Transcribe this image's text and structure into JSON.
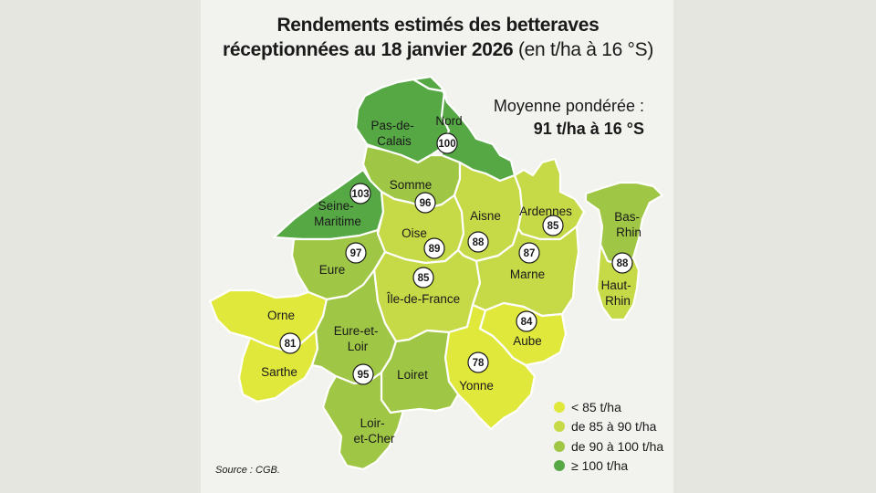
{
  "title": {
    "line1": "Rendements estimés des betteraves",
    "line2": "réceptionnées au 18 janvier 2026",
    "unit": "(en t/ha à 16 °S)"
  },
  "average": {
    "label": "Moyenne pondérée :",
    "value": "91 t/ha à 16 °S"
  },
  "colors": {
    "lt85": "#e1e83c",
    "85to90": "#c6d947",
    "90to100": "#9fc745",
    "ge100": "#56a845"
  },
  "departments": [
    {
      "id": "pas-de-calais",
      "name": "Pas-de-Calais",
      "value": null,
      "class": "ge100"
    },
    {
      "id": "nord",
      "name": "Nord",
      "value": 100,
      "class": "ge100"
    },
    {
      "id": "seine-maritime",
      "name": "Seine-Maritime",
      "value": 103,
      "class": "ge100"
    },
    {
      "id": "somme",
      "name": "Somme",
      "value": 96,
      "class": "90to100"
    },
    {
      "id": "oise",
      "name": "Oise",
      "value": 89,
      "class": "85to90"
    },
    {
      "id": "aisne",
      "name": "Aisne",
      "value": 88,
      "class": "85to90"
    },
    {
      "id": "ardennes",
      "name": "Ardennes",
      "value": 85,
      "class": "85to90"
    },
    {
      "id": "bas-rhin",
      "name": "Bas-Rhin",
      "value": null,
      "class": "90to100"
    },
    {
      "id": "haut-rhin",
      "name": "Haut-Rhin",
      "value": 88,
      "class": "85to90"
    },
    {
      "id": "eure",
      "name": "Eure",
      "value": 97,
      "class": "90to100"
    },
    {
      "id": "ile-de-france",
      "name": "Île-de-France",
      "value": 85,
      "class": "85to90"
    },
    {
      "id": "marne",
      "name": "Marne",
      "value": 87,
      "class": "85to90"
    },
    {
      "id": "aube",
      "name": "Aube",
      "value": 84,
      "class": "lt85"
    },
    {
      "id": "orne",
      "name": "Orne",
      "value": 81,
      "class": "lt85"
    },
    {
      "id": "sarthe",
      "name": "Sarthe",
      "value": null,
      "class": "lt85"
    },
    {
      "id": "eure-et-loir",
      "name": "Eure-et-Loir",
      "value": 95,
      "class": "90to100"
    },
    {
      "id": "loiret",
      "name": "Loiret",
      "value": null,
      "class": "90to100"
    },
    {
      "id": "yonne",
      "name": "Yonne",
      "value": 78,
      "class": "lt85"
    },
    {
      "id": "loir-et-cher",
      "name": "Loir-et-Cher",
      "value": null,
      "class": "90to100"
    }
  ],
  "legend": [
    {
      "label": "< 85 t/ha",
      "color": "#e1e83c"
    },
    {
      "label": "de 85 à 90 t/ha",
      "color": "#c6d947"
    },
    {
      "label": "de 90 à 100 t/ha",
      "color": "#9fc745"
    },
    {
      "label": "≥ 100 t/ha",
      "color": "#56a845"
    }
  ],
  "source": "Source : CGB."
}
